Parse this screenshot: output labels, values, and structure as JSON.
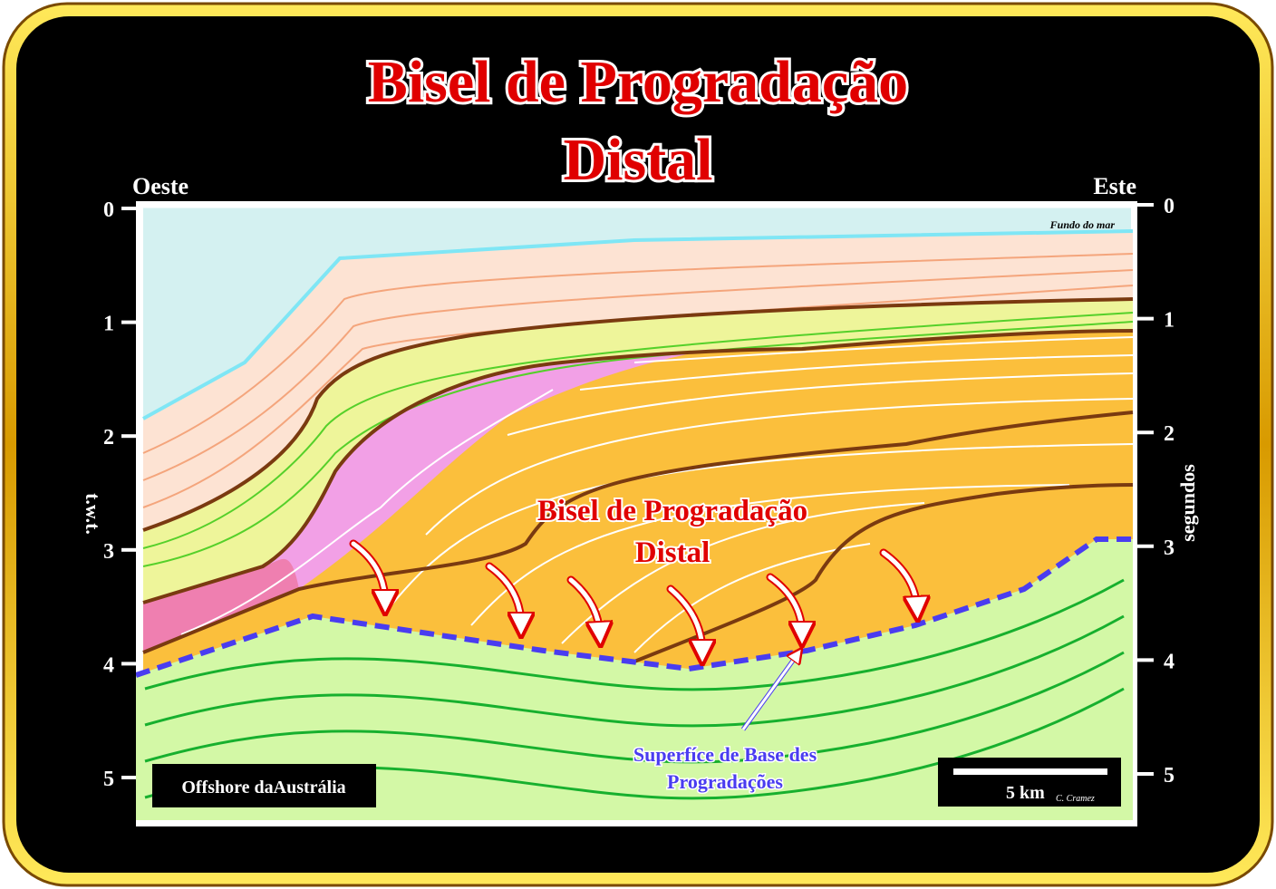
{
  "title": [
    "Bisel de Progradação",
    "Distal"
  ],
  "west": "Oeste",
  "east": "Este",
  "left_axis": {
    "label": "t.w.t.",
    "ticks": [
      0,
      1,
      2,
      3,
      4,
      5
    ]
  },
  "right_axis": {
    "label": "segundos",
    "ticks": [
      0,
      1,
      2,
      3,
      4,
      5
    ]
  },
  "seafloor": "Fundo do mar",
  "annotation": [
    "Bisel de Progradação",
    "Distal"
  ],
  "surface": [
    "Superfíce de Base des",
    "Progradações"
  ],
  "location": "Offshore daAustrália",
  "scale": "5 km",
  "credit": "C. Cramez"
}
